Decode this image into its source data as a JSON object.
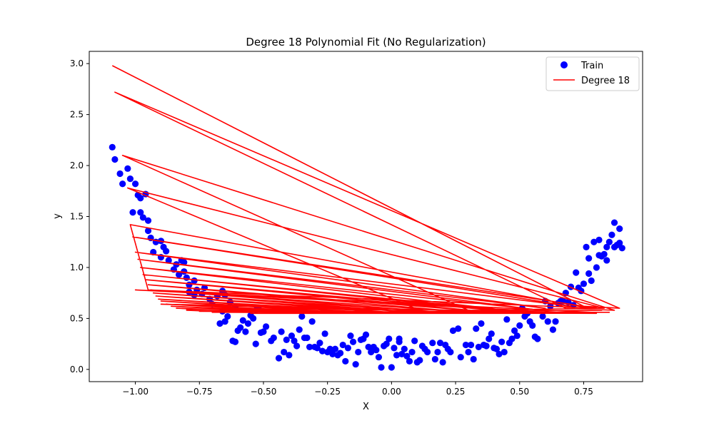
{
  "chart_data": {
    "type": "scatter",
    "title": "Degree 18 Polynomial Fit (No Regularization)",
    "xlabel": "X",
    "ylabel": "y",
    "xlim": [
      -1.18,
      0.98
    ],
    "ylim": [
      -0.12,
      3.12
    ],
    "xticks": [
      -1.0,
      -0.75,
      -0.5,
      -0.25,
      0.0,
      0.25,
      0.5,
      0.75
    ],
    "xtick_labels": [
      "−1.00",
      "−0.75",
      "−0.50",
      "−0.25",
      "0.00",
      "0.25",
      "0.50",
      "0.75"
    ],
    "yticks": [
      0.0,
      0.5,
      1.0,
      1.5,
      2.0,
      2.5,
      3.0
    ],
    "ytick_labels": [
      "0.0",
      "0.5",
      "1.0",
      "1.5",
      "2.0",
      "2.5",
      "3.0"
    ],
    "grid": false,
    "legend_position": "top-right",
    "series": [
      {
        "name": "Train",
        "kind": "scatter",
        "color": "#0000ff",
        "points": [
          [
            -1.09,
            2.18
          ],
          [
            -1.08,
            2.06
          ],
          [
            -1.06,
            1.92
          ],
          [
            -1.05,
            1.82
          ],
          [
            -1.03,
            1.97
          ],
          [
            -1.02,
            1.87
          ],
          [
            -1.0,
            1.82
          ],
          [
            -0.99,
            1.71
          ],
          [
            -0.98,
            1.68
          ],
          [
            -0.96,
            1.72
          ],
          [
            -1.01,
            1.54
          ],
          [
            -0.98,
            1.54
          ],
          [
            -0.97,
            1.49
          ],
          [
            -0.95,
            1.46
          ],
          [
            -0.95,
            1.36
          ],
          [
            -0.94,
            1.29
          ],
          [
            -0.92,
            1.25
          ],
          [
            -0.9,
            1.26
          ],
          [
            -0.89,
            1.2
          ],
          [
            -0.88,
            1.16
          ],
          [
            -0.93,
            1.15
          ],
          [
            -0.9,
            1.1
          ],
          [
            -0.87,
            1.07
          ],
          [
            -0.84,
            1.03
          ],
          [
            -0.82,
            1.07
          ],
          [
            -0.81,
            1.05
          ],
          [
            -0.85,
            0.98
          ],
          [
            -0.83,
            0.93
          ],
          [
            -0.81,
            0.96
          ],
          [
            -0.8,
            0.9
          ],
          [
            -0.79,
            0.83
          ],
          [
            -0.77,
            0.87
          ],
          [
            -0.76,
            0.78
          ],
          [
            -0.79,
            0.76
          ],
          [
            -0.77,
            0.73
          ],
          [
            -0.74,
            0.74
          ],
          [
            -0.73,
            0.8
          ],
          [
            -0.71,
            0.69
          ],
          [
            -0.7,
            0.64
          ],
          [
            -0.68,
            0.72
          ],
          [
            -0.66,
            0.77
          ],
          [
            -0.65,
            0.73
          ],
          [
            -0.63,
            0.66
          ],
          [
            -0.61,
            0.61
          ],
          [
            -0.66,
            0.57
          ],
          [
            -0.64,
            0.52
          ],
          [
            -0.67,
            0.45
          ],
          [
            -0.65,
            0.47
          ],
          [
            -0.62,
            0.28
          ],
          [
            -0.61,
            0.27
          ],
          [
            -0.6,
            0.38
          ],
          [
            -0.58,
            0.48
          ],
          [
            -0.59,
            0.41
          ],
          [
            -0.57,
            0.37
          ],
          [
            -0.56,
            0.45
          ],
          [
            -0.55,
            0.53
          ],
          [
            -0.54,
            0.5
          ],
          [
            -0.52,
            0.6
          ],
          [
            -0.53,
            0.58
          ],
          [
            -0.51,
            0.36
          ],
          [
            -0.5,
            0.37
          ],
          [
            -0.49,
            0.42
          ],
          [
            -0.53,
            0.25
          ],
          [
            -0.47,
            0.28
          ],
          [
            -0.46,
            0.31
          ],
          [
            -0.44,
            0.11
          ],
          [
            -0.43,
            0.37
          ],
          [
            -0.42,
            0.17
          ],
          [
            -0.41,
            0.29
          ],
          [
            -0.4,
            0.14
          ],
          [
            -0.39,
            0.33
          ],
          [
            -0.38,
            0.28
          ],
          [
            -0.37,
            0.23
          ],
          [
            -0.36,
            0.39
          ],
          [
            -0.35,
            0.52
          ],
          [
            -0.34,
            0.31
          ],
          [
            -0.33,
            0.31
          ],
          [
            -0.32,
            0.22
          ],
          [
            -0.31,
            0.47
          ],
          [
            -0.3,
            0.22
          ],
          [
            -0.29,
            0.21
          ],
          [
            -0.28,
            0.26
          ],
          [
            -0.27,
            0.18
          ],
          [
            -0.26,
            0.35
          ],
          [
            -0.25,
            0.17
          ],
          [
            -0.24,
            0.2
          ],
          [
            -0.23,
            0.15
          ],
          [
            -0.22,
            0.2
          ],
          [
            -0.21,
            0.14
          ],
          [
            -0.2,
            0.16
          ],
          [
            -0.19,
            0.24
          ],
          [
            -0.18,
            0.08
          ],
          [
            -0.17,
            0.21
          ],
          [
            -0.16,
            0.33
          ],
          [
            -0.15,
            0.27
          ],
          [
            -0.14,
            0.05
          ],
          [
            -0.13,
            0.17
          ],
          [
            -0.12,
            0.29
          ],
          [
            -0.11,
            0.3
          ],
          [
            -0.1,
            0.34
          ],
          [
            -0.09,
            0.22
          ],
          [
            -0.08,
            0.17
          ],
          [
            -0.07,
            0.22
          ],
          [
            -0.06,
            0.19
          ],
          [
            -0.05,
            0.12
          ],
          [
            -0.04,
            0.02
          ],
          [
            -0.03,
            0.23
          ],
          [
            -0.02,
            0.25
          ],
          [
            -0.01,
            0.3
          ],
          [
            0.0,
            0.02
          ],
          [
            0.01,
            0.21
          ],
          [
            0.02,
            0.14
          ],
          [
            0.03,
            0.27
          ],
          [
            0.03,
            0.3
          ],
          [
            0.04,
            0.15
          ],
          [
            0.05,
            0.2
          ],
          [
            0.06,
            0.13
          ],
          [
            0.07,
            0.08
          ],
          [
            0.08,
            0.17
          ],
          [
            0.09,
            0.28
          ],
          [
            0.1,
            0.07
          ],
          [
            0.11,
            0.09
          ],
          [
            0.12,
            0.23
          ],
          [
            0.13,
            0.2
          ],
          [
            0.14,
            0.17
          ],
          [
            0.16,
            0.26
          ],
          [
            0.17,
            0.1
          ],
          [
            0.18,
            0.17
          ],
          [
            0.19,
            0.26
          ],
          [
            0.2,
            0.07
          ],
          [
            0.21,
            0.24
          ],
          [
            0.22,
            0.2
          ],
          [
            0.23,
            0.17
          ],
          [
            0.24,
            0.38
          ],
          [
            0.26,
            0.4
          ],
          [
            0.27,
            0.12
          ],
          [
            0.29,
            0.24
          ],
          [
            0.3,
            0.17
          ],
          [
            0.31,
            0.24
          ],
          [
            0.32,
            0.1
          ],
          [
            0.33,
            0.4
          ],
          [
            0.34,
            0.22
          ],
          [
            0.35,
            0.45
          ],
          [
            0.36,
            0.24
          ],
          [
            0.37,
            0.23
          ],
          [
            0.38,
            0.3
          ],
          [
            0.39,
            0.35
          ],
          [
            0.4,
            0.21
          ],
          [
            0.41,
            0.2
          ],
          [
            0.42,
            0.15
          ],
          [
            0.43,
            0.27
          ],
          [
            0.44,
            0.17
          ],
          [
            0.45,
            0.49
          ],
          [
            0.46,
            0.26
          ],
          [
            0.47,
            0.3
          ],
          [
            0.48,
            0.38
          ],
          [
            0.49,
            0.33
          ],
          [
            0.5,
            0.43
          ],
          [
            0.51,
            0.6
          ],
          [
            0.52,
            0.52
          ],
          [
            0.53,
            0.55
          ],
          [
            0.54,
            0.47
          ],
          [
            0.55,
            0.43
          ],
          [
            0.56,
            0.32
          ],
          [
            0.57,
            0.3
          ],
          [
            0.59,
            0.52
          ],
          [
            0.6,
            0.67
          ],
          [
            0.61,
            0.47
          ],
          [
            0.62,
            0.62
          ],
          [
            0.63,
            0.39
          ],
          [
            0.64,
            0.47
          ],
          [
            0.65,
            0.65
          ],
          [
            0.66,
            0.67
          ],
          [
            0.67,
            0.67
          ],
          [
            0.68,
            0.75
          ],
          [
            0.69,
            0.66
          ],
          [
            0.7,
            0.81
          ],
          [
            0.71,
            0.63
          ],
          [
            0.72,
            0.95
          ],
          [
            0.73,
            0.8
          ],
          [
            0.74,
            0.77
          ],
          [
            0.75,
            0.84
          ],
          [
            0.76,
            1.2
          ],
          [
            0.77,
            1.09
          ],
          [
            0.77,
            0.94
          ],
          [
            0.78,
            0.87
          ],
          [
            0.79,
            1.25
          ],
          [
            0.8,
            1.0
          ],
          [
            0.81,
            1.12
          ],
          [
            0.81,
            1.27
          ],
          [
            0.82,
            1.11
          ],
          [
            0.83,
            1.13
          ],
          [
            0.84,
            1.07
          ],
          [
            0.84,
            1.2
          ],
          [
            0.85,
            1.25
          ],
          [
            0.86,
            1.32
          ],
          [
            0.87,
            1.2
          ],
          [
            0.87,
            1.44
          ],
          [
            0.88,
            1.22
          ],
          [
            0.89,
            1.38
          ],
          [
            0.89,
            1.24
          ],
          [
            0.9,
            1.19
          ]
        ]
      },
      {
        "name": "Degree 18",
        "kind": "line",
        "color": "#ff0000",
        "points": [
          [
            -1.09,
            2.98
          ],
          [
            0.75,
            0.62
          ],
          [
            0.89,
            0.6
          ],
          [
            -1.08,
            2.72
          ],
          [
            0.68,
            0.6
          ],
          [
            0.87,
            0.58
          ],
          [
            -1.05,
            2.1
          ],
          [
            0.3,
            0.58
          ],
          [
            0.83,
            0.6
          ],
          [
            -1.03,
            1.78
          ],
          [
            0.12,
            0.57
          ],
          [
            0.82,
            0.58
          ],
          [
            -1.02,
            1.42
          ],
          [
            -0.95,
            0.78
          ],
          [
            0.8,
            0.6
          ],
          [
            -1.01,
            1.3
          ],
          [
            0.7,
            0.62
          ],
          [
            -1.0,
            1.15
          ],
          [
            0.6,
            0.6
          ],
          [
            -0.99,
            1.08
          ],
          [
            0.55,
            0.59
          ],
          [
            -0.98,
            1.0
          ],
          [
            0.45,
            0.58
          ],
          [
            -0.97,
            0.93
          ],
          [
            0.4,
            0.58
          ],
          [
            -0.96,
            0.88
          ],
          [
            0.35,
            0.57
          ],
          [
            -0.95,
            0.83
          ],
          [
            0.25,
            0.57
          ],
          [
            -0.94,
            0.78
          ],
          [
            0.2,
            0.56
          ],
          [
            -0.93,
            0.75
          ],
          [
            0.1,
            0.56
          ],
          [
            -0.92,
            0.72
          ],
          [
            0.0,
            0.56
          ],
          [
            -0.91,
            0.69
          ],
          [
            -0.1,
            0.56
          ],
          [
            -0.9,
            0.67
          ],
          [
            -0.2,
            0.56
          ],
          [
            -0.88,
            0.64
          ],
          [
            -0.3,
            0.56
          ],
          [
            -0.86,
            0.62
          ],
          [
            -0.4,
            0.56
          ],
          [
            -0.84,
            0.6
          ],
          [
            -0.5,
            0.56
          ],
          [
            -0.8,
            0.58
          ],
          [
            -0.6,
            0.56
          ],
          [
            -0.7,
            0.56
          ],
          [
            0.85,
            0.56
          ],
          [
            -0.75,
            0.57
          ],
          [
            0.8,
            0.55
          ],
          [
            -0.65,
            0.56
          ],
          [
            0.5,
            0.55
          ],
          [
            -0.55,
            0.55
          ],
          [
            0.3,
            0.55
          ],
          [
            -0.45,
            0.55
          ],
          [
            0.15,
            0.55
          ],
          [
            -0.35,
            0.55
          ],
          [
            0.05,
            0.55
          ],
          [
            -0.25,
            0.55
          ],
          [
            -0.05,
            0.55
          ],
          [
            -0.15,
            0.55
          ],
          [
            0.78,
            0.56
          ],
          [
            -1.0,
            0.78
          ],
          [
            0.65,
            0.56
          ],
          [
            -0.9,
            0.64
          ],
          [
            0.45,
            0.55
          ],
          [
            -0.8,
            0.59
          ],
          [
            0.35,
            0.55
          ],
          [
            -0.7,
            0.57
          ],
          [
            0.25,
            0.55
          ],
          [
            -0.6,
            0.56
          ],
          [
            0.6,
            0.55
          ]
        ]
      }
    ]
  }
}
